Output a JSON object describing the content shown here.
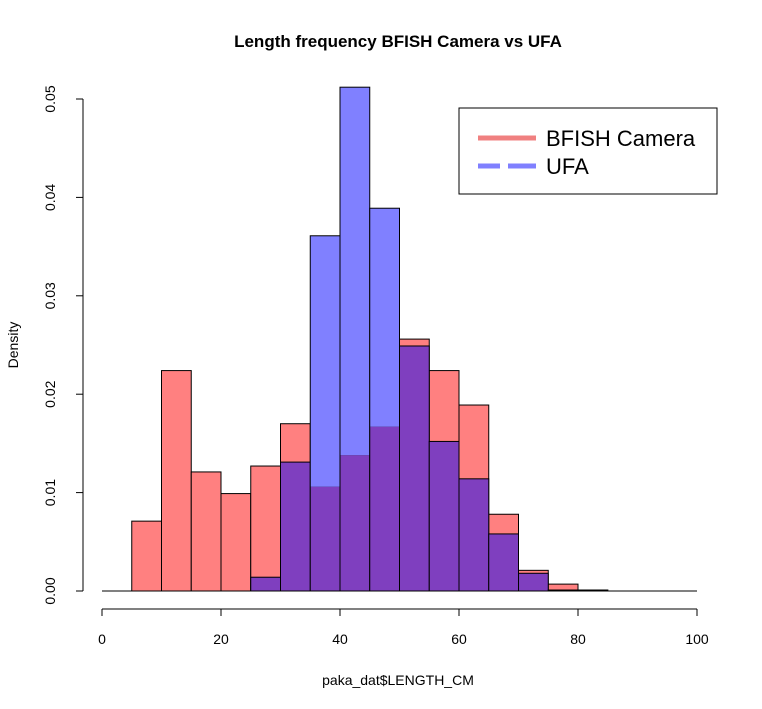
{
  "chart_data": {
    "type": "bar",
    "title": "Length frequency BFISH Camera vs UFA",
    "xlabel": "paka_dat$LENGTH_CM",
    "ylabel": "Density",
    "xlim": [
      0,
      100
    ],
    "ylim": [
      0,
      0.05
    ],
    "x_ticks": [
      "0",
      "20",
      "40",
      "60",
      "80",
      "100"
    ],
    "y_ticks": [
      "0.00",
      "0.01",
      "0.02",
      "0.03",
      "0.04",
      "0.05"
    ],
    "bin_edges": [
      5,
      10,
      15,
      20,
      25,
      30,
      35,
      40,
      45,
      50,
      55,
      60,
      65,
      70,
      75,
      80,
      85
    ],
    "series": [
      {
        "name": "BFISH Camera",
        "color": "#ff8080",
        "values": [
          0.0071,
          0.0224,
          0.0121,
          0.0099,
          0.0127,
          0.017,
          0.0106,
          0.0138,
          0.0167,
          0.0256,
          0.0224,
          0.0189,
          0.0078,
          0.0021,
          0.0007,
          0.0001
        ]
      },
      {
        "name": "UFA",
        "color": "#8080ff",
        "values": [
          0,
          0,
          0,
          0,
          0.0014,
          0.0131,
          0.0361,
          0.0512,
          0.0389,
          0.0249,
          0.0152,
          0.0114,
          0.0058,
          0.0018,
          0.0001,
          0.0001
        ]
      }
    ],
    "overlap_color": "#7f3fbf",
    "legend": {
      "position": "top-right",
      "entries": [
        {
          "label": "BFISH Camera",
          "color": "#f08080"
        },
        {
          "label": "UFA",
          "color": "#8080ff"
        }
      ]
    },
    "grid": false
  }
}
